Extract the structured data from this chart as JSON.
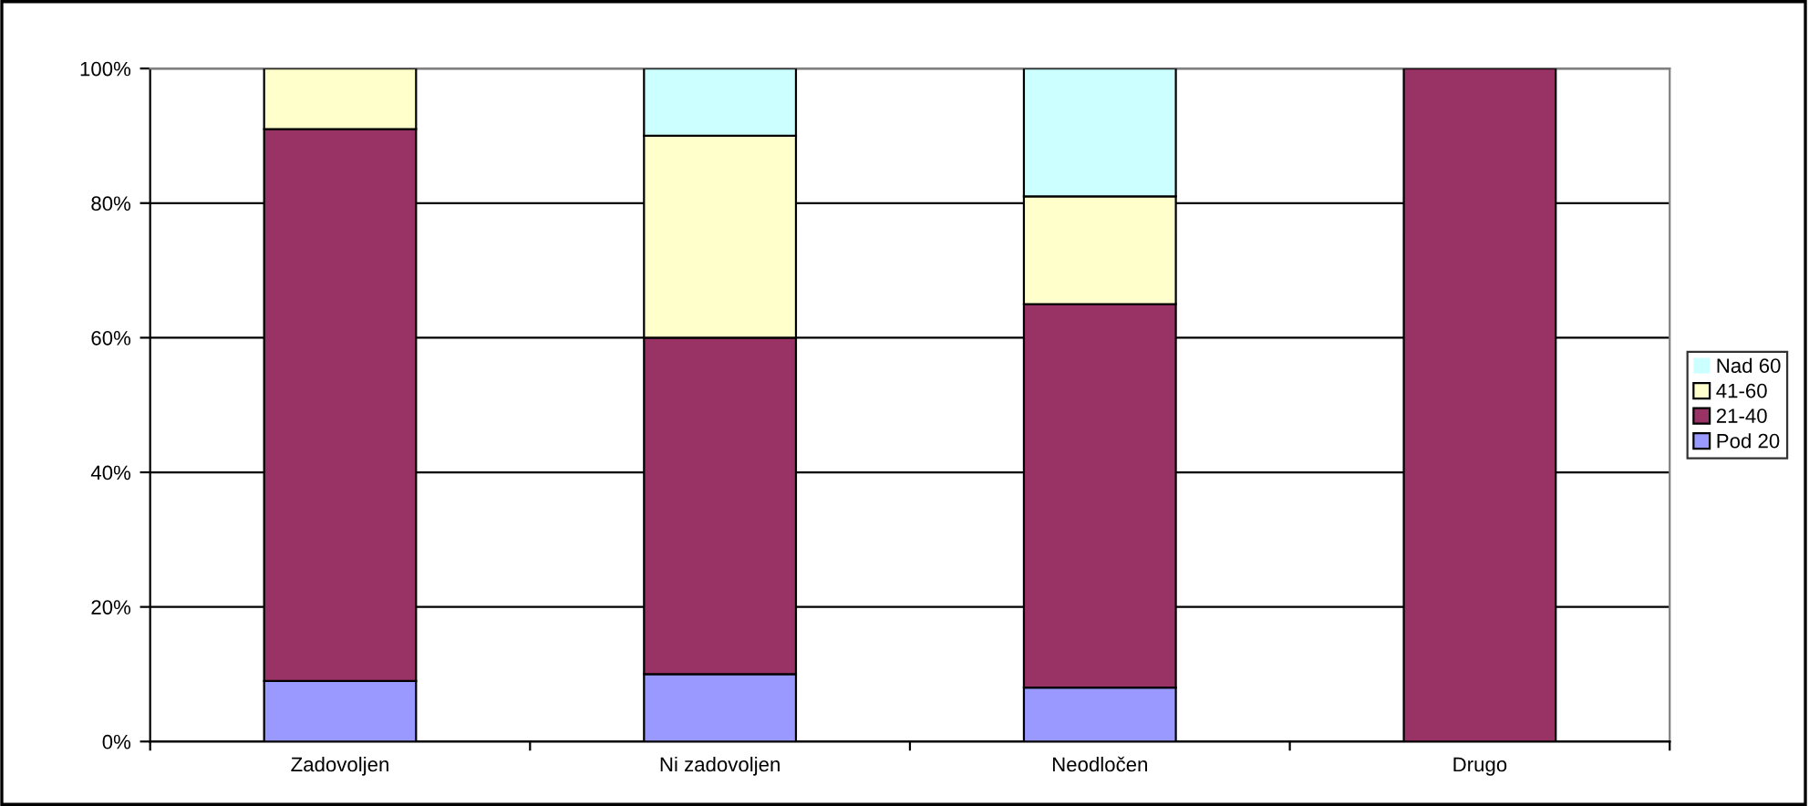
{
  "chart_data": {
    "type": "bar",
    "stacked": true,
    "categories": [
      "Zadovoljen",
      "Ni zadovoljen",
      "Neodločen",
      "Drugo"
    ],
    "series": [
      {
        "name": "Pod 20",
        "color": "#9999ff",
        "values": [
          9,
          10,
          8,
          0
        ]
      },
      {
        "name": "21-40",
        "color": "#993366",
        "values": [
          82,
          50,
          57,
          100
        ]
      },
      {
        "name": "41-60",
        "color": "#ffffcc",
        "values": [
          9,
          30,
          16,
          0
        ]
      },
      {
        "name": "Nad 60",
        "color": "#ccffff",
        "values": [
          0,
          10,
          19,
          0
        ]
      }
    ],
    "ylim": [
      0,
      100
    ],
    "yticks": [
      {
        "value": 0,
        "label": "0%"
      },
      {
        "value": 20,
        "label": "20%"
      },
      {
        "value": 40,
        "label": "40%"
      },
      {
        "value": 60,
        "label": "60%"
      },
      {
        "value": 80,
        "label": "80%"
      },
      {
        "value": 100,
        "label": "100%"
      }
    ],
    "grid": "y",
    "legend": "right"
  }
}
